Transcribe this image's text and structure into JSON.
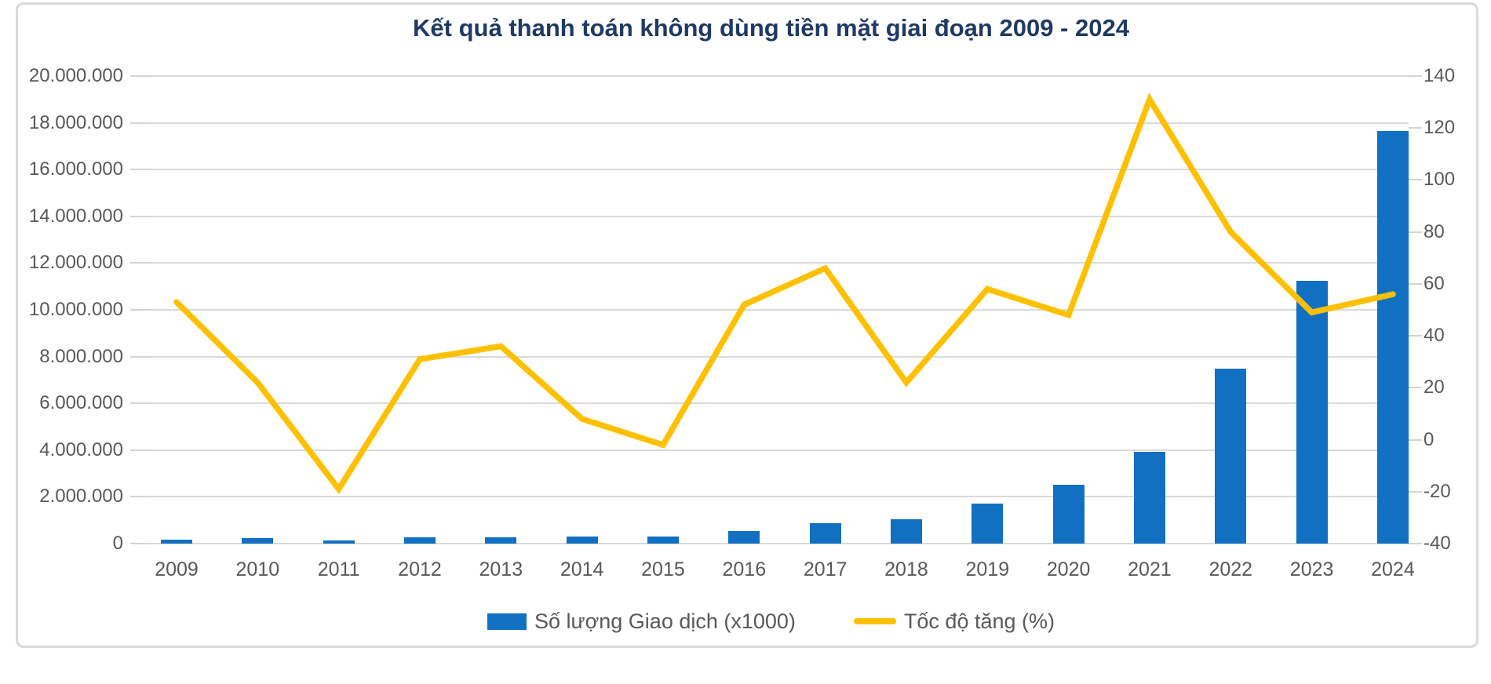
{
  "title": "Kết quả thanh toán không dùng tiền mặt giai đoạn 2009 - 2024",
  "colors": {
    "bar": "#1170c1",
    "line": "#ffc000",
    "title_text": "#1f3a64",
    "axis_text": "#595959",
    "gridline": "#dadada",
    "card_border": "#d9d9d9"
  },
  "legend": {
    "items": [
      {
        "label": "Số lượng Giao dịch (x1000)",
        "swatch": "bar-swatch"
      },
      {
        "label": "Tốc độ tăng (%)",
        "swatch": "line-swatch"
      }
    ]
  },
  "left_axis": {
    "labels": [
      "20.000.000",
      "18.000.000",
      "16.000.000",
      "14.000.000",
      "12.000.000",
      "10.000.000",
      "8.000.000",
      "6.000.000",
      "4.000.000",
      "2.000.000",
      "0"
    ],
    "min": 0,
    "max": 20000000,
    "step": 2000000
  },
  "right_axis": {
    "labels": [
      "140",
      "120",
      "100",
      "80",
      "60",
      "40",
      "20",
      "0",
      "-20",
      "-40"
    ],
    "min": -40,
    "max": 140,
    "step": 20
  },
  "chart_data": {
    "type": "bar",
    "subtype": "combo-bar-line-dual-axis",
    "title": "Kết quả thanh toán không dùng tiền mặt giai đoạn 2009 - 2024",
    "categories": [
      "2009",
      "2010",
      "2011",
      "2012",
      "2013",
      "2014",
      "2015",
      "2016",
      "2017",
      "2018",
      "2019",
      "2020",
      "2021",
      "2022",
      "2023",
      "2024"
    ],
    "series": [
      {
        "name": "Số lượng Giao dịch (x1000)",
        "type": "bar",
        "axis": "left",
        "color": "#1170c1",
        "values": [
          170000,
          235000,
          134000,
          268000,
          268000,
          302000,
          302000,
          537000,
          872000,
          1050000,
          1700000,
          2510000,
          3940000,
          7480000,
          11240000,
          17650000
        ]
      },
      {
        "name": "Tốc độ tăng (%)",
        "type": "line",
        "axis": "right",
        "color": "#ffc000",
        "values": [
          53,
          22,
          -19,
          31,
          36,
          8,
          -2,
          52,
          66,
          22,
          58,
          48,
          131,
          80,
          49,
          56
        ]
      }
    ],
    "xlabel": "",
    "ylabel_left": "Số lượng Giao dịch (x1000)",
    "ylabel_right": "Tốc độ tăng (%)",
    "left_ylim": [
      0,
      20000000
    ],
    "right_ylim": [
      -40,
      140
    ],
    "grid": true,
    "legend_position": "bottom"
  }
}
